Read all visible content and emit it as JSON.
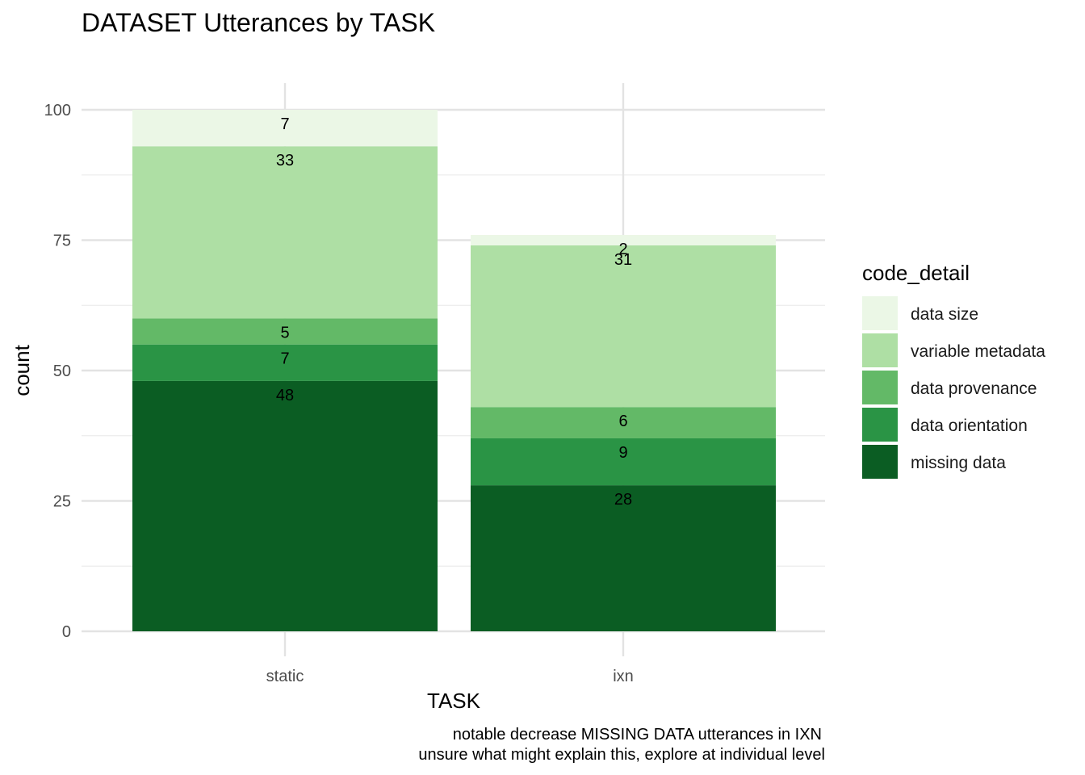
{
  "chart_data": {
    "type": "bar",
    "stacked": true,
    "title": "DATASET Utterances by TASK",
    "xlabel": "TASK",
    "ylabel": "count",
    "categories": [
      "static",
      "ixn"
    ],
    "ylim": [
      0,
      100
    ],
    "yticks": [
      0,
      25,
      50,
      75,
      100
    ],
    "grid": true,
    "legend": {
      "title": "code_detail",
      "position": "right"
    },
    "series": [
      {
        "name": "missing data",
        "values": [
          48,
          28
        ],
        "color": "#0b5d23"
      },
      {
        "name": "data orientation",
        "values": [
          7,
          9
        ],
        "color": "#2a9445"
      },
      {
        "name": "data provenance",
        "values": [
          5,
          6
        ],
        "color": "#63b967"
      },
      {
        "name": "variable metadata",
        "values": [
          33,
          31
        ],
        "color": "#aedfa4"
      },
      {
        "name": "data size",
        "values": [
          7,
          2
        ],
        "color": "#ebf7e6"
      }
    ],
    "legend_order": [
      "data size",
      "variable metadata",
      "data provenance",
      "data orientation",
      "missing data"
    ],
    "caption": [
      "notable decrease MISSING DATA utterances in IXN",
      "unsure what might explain this, explore at individual level"
    ]
  }
}
